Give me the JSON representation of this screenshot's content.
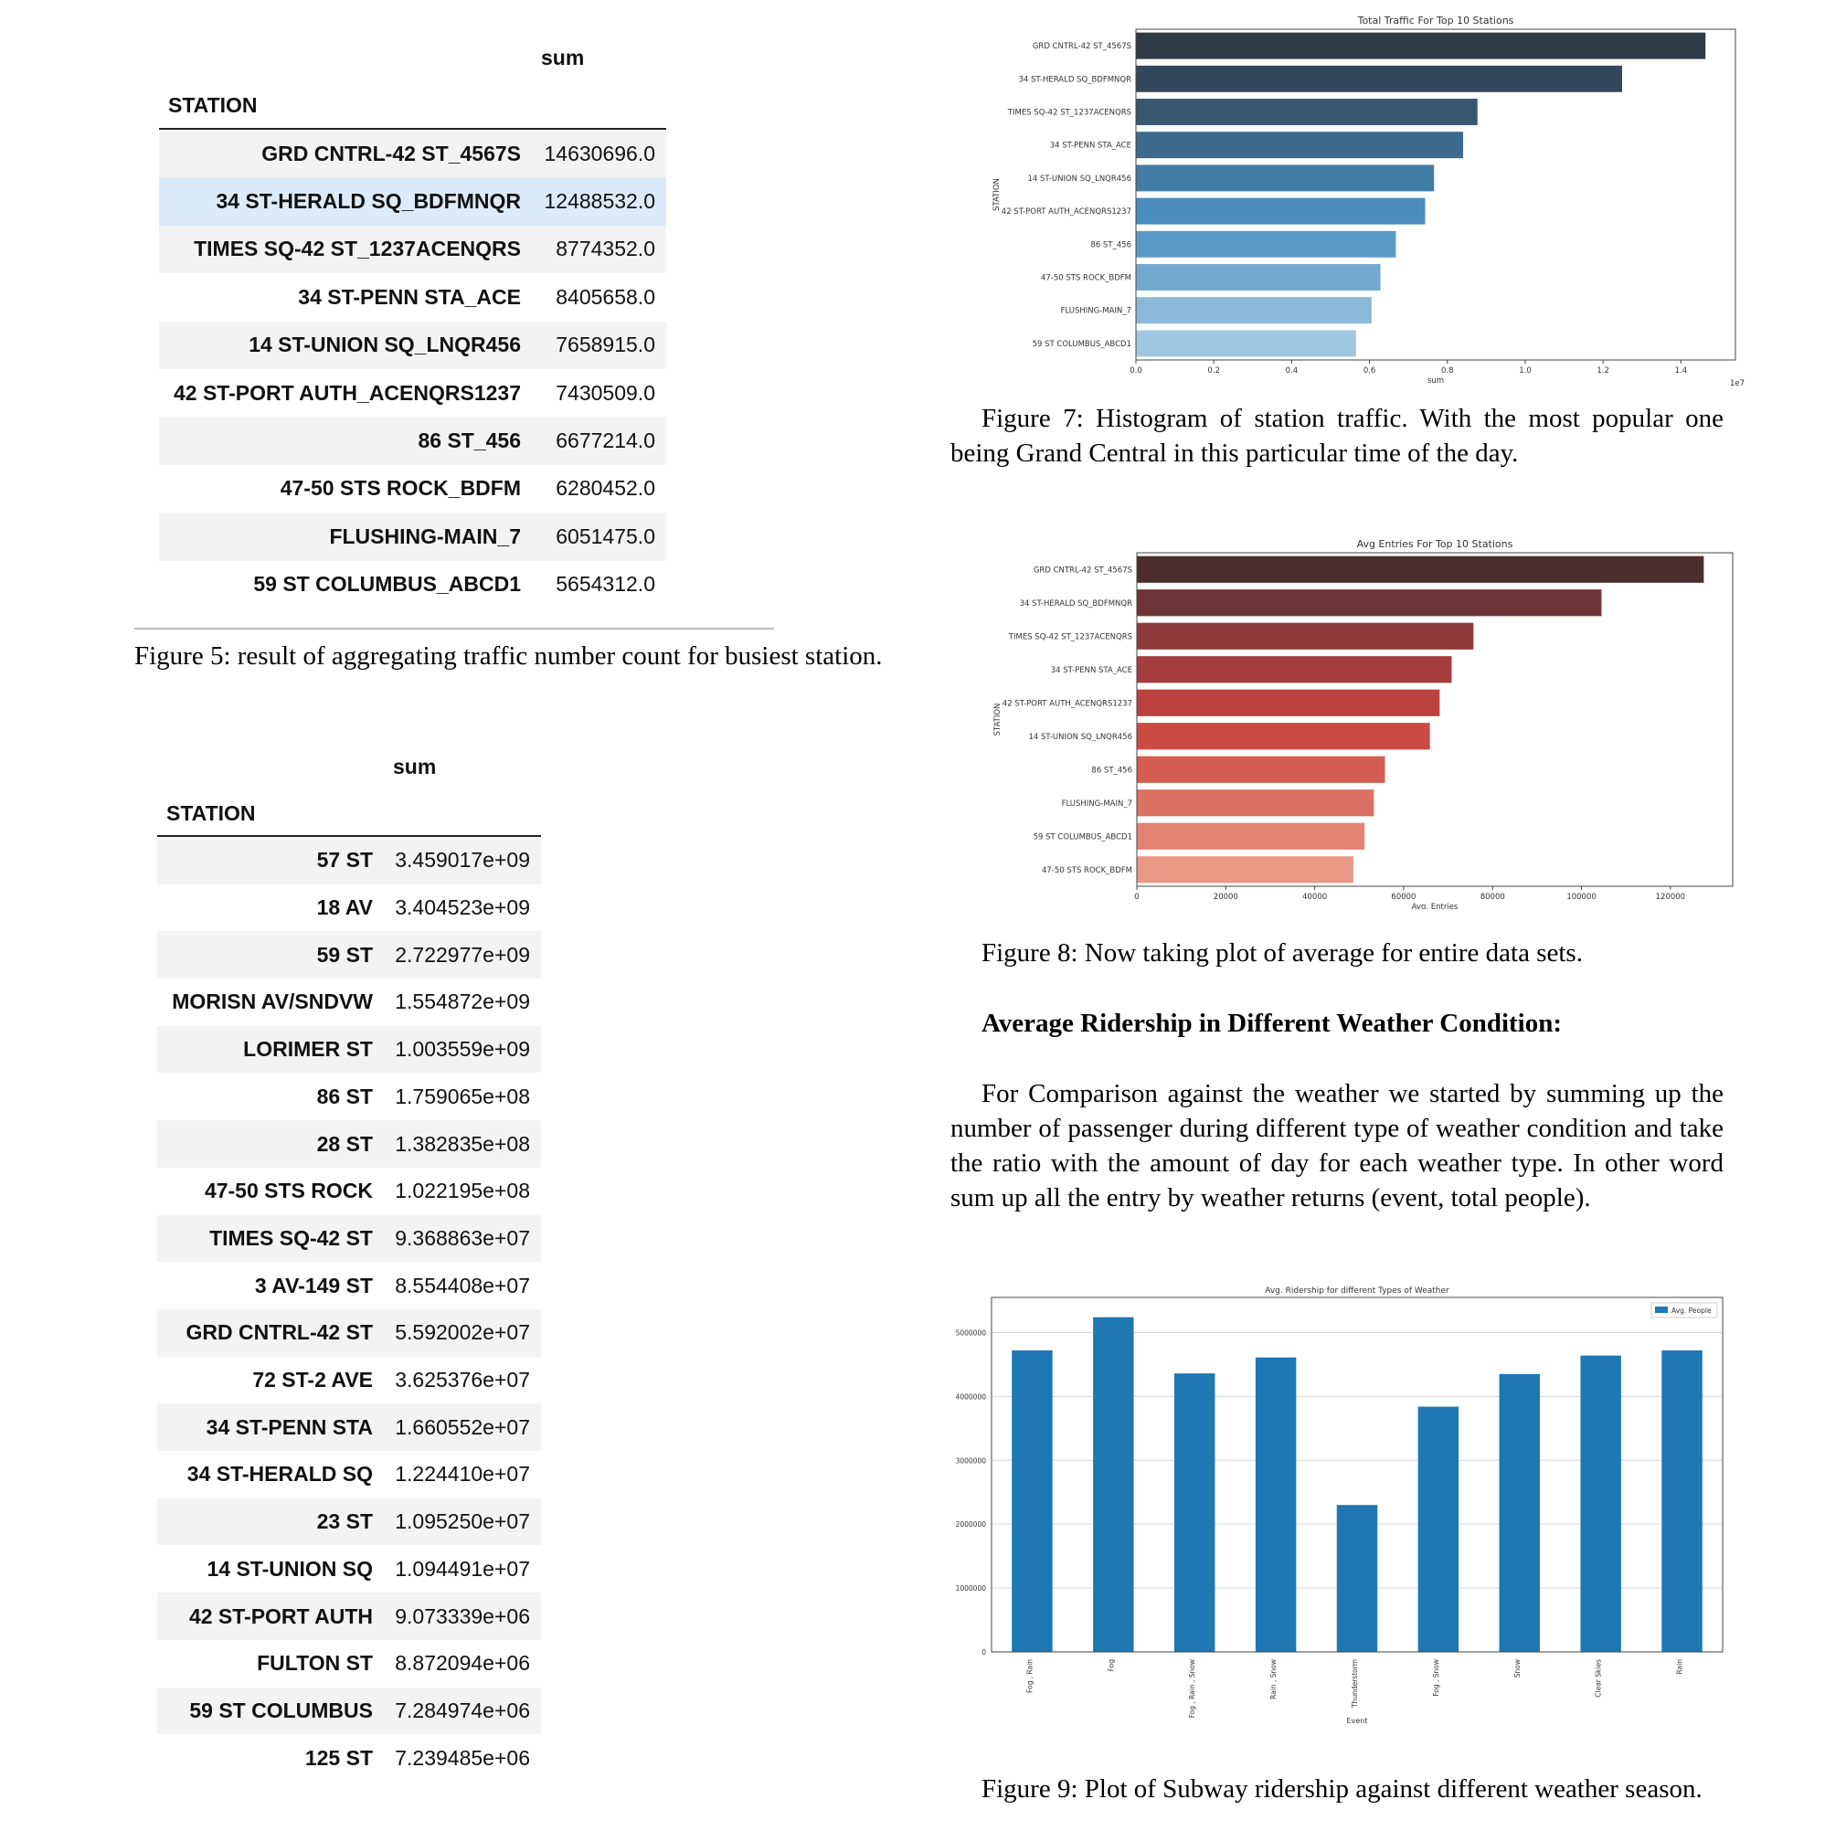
{
  "table1": {
    "col_header": "sum",
    "index_header": "STATION",
    "rows": [
      {
        "station": "GRD CNTRL-42 ST_4567S",
        "value": "14630696.0"
      },
      {
        "station": "34 ST-HERALD SQ_BDFMNQR",
        "value": "12488532.0"
      },
      {
        "station": "TIMES SQ-42 ST_1237ACENQRS",
        "value": "8774352.0"
      },
      {
        "station": "34 ST-PENN STA_ACE",
        "value": "8405658.0"
      },
      {
        "station": "14 ST-UNION SQ_LNQR456",
        "value": "7658915.0"
      },
      {
        "station": "42 ST-PORT AUTH_ACENQRS1237",
        "value": "7430509.0"
      },
      {
        "station": "86 ST_456",
        "value": "6677214.0"
      },
      {
        "station": "47-50 STS ROCK_BDFM",
        "value": "6280452.0"
      },
      {
        "station": "FLUSHING-MAIN_7",
        "value": "6051475.0"
      },
      {
        "station": "59 ST COLUMBUS_ABCD1",
        "value": "5654312.0"
      }
    ]
  },
  "fig5_caption": "Figure 5: result of aggregating traffic number count for busiest station.",
  "table2": {
    "col_header": "sum",
    "index_header": "STATION",
    "rows": [
      {
        "station": "57 ST",
        "value": "3.459017e+09"
      },
      {
        "station": "18 AV",
        "value": "3.404523e+09"
      },
      {
        "station": "59 ST",
        "value": "2.722977e+09"
      },
      {
        "station": "MORISN AV/SNDVW",
        "value": "1.554872e+09"
      },
      {
        "station": "LORIMER ST",
        "value": "1.003559e+09"
      },
      {
        "station": "86 ST",
        "value": "1.759065e+08"
      },
      {
        "station": "28 ST",
        "value": "1.382835e+08"
      },
      {
        "station": "47-50 STS ROCK",
        "value": "1.022195e+08"
      },
      {
        "station": "TIMES SQ-42 ST",
        "value": "9.368863e+07"
      },
      {
        "station": "3 AV-149 ST",
        "value": "8.554408e+07"
      },
      {
        "station": "GRD CNTRL-42 ST",
        "value": "5.592002e+07"
      },
      {
        "station": "72 ST-2 AVE",
        "value": "3.625376e+07"
      },
      {
        "station": "34 ST-PENN STA",
        "value": "1.660552e+07"
      },
      {
        "station": "34 ST-HERALD SQ",
        "value": "1.224410e+07"
      },
      {
        "station": "23 ST",
        "value": "1.095250e+07"
      },
      {
        "station": "14 ST-UNION SQ",
        "value": "1.094491e+07"
      },
      {
        "station": "42 ST-PORT AUTH",
        "value": "9.073339e+06"
      },
      {
        "station": "FULTON ST",
        "value": "8.872094e+06"
      },
      {
        "station": "59 ST COLUMBUS",
        "value": "7.284974e+06"
      },
      {
        "station": "125 ST",
        "value": "7.239485e+06"
      }
    ]
  },
  "fig7_caption": "Figure 7: Histogram of station traffic. With the most popular one being Grand Central in this particular time of the day.",
  "fig8_caption": "Figure 8: Now taking plot of average for entire data sets.",
  "section_heading": "Average Ridership in Different Weather Condition:",
  "paragraph": "For Comparison against the weather we started by summing up the number of passenger during different type of weather condition and take the ratio with the amount of day for each weather type. In other word sum up all the entry by weather returns (event, total people).",
  "fig9_caption": "Figure 9: Plot of Subway ridership against different weather season.",
  "chart_data": [
    {
      "type": "bar",
      "orientation": "horizontal",
      "title": "Total Traffic For Top 10 Stations",
      "xlabel": "sum",
      "ylabel": "STATION",
      "x_offset_label": "1e7",
      "categories": [
        "GRD CNTRL-42 ST_4567S",
        "34 ST-HERALD SQ_BDFMNQR",
        "TIMES SQ-42 ST_1237ACENQRS",
        "34 ST-PENN STA_ACE",
        "14 ST-UNION SQ_LNQR456",
        "42 ST-PORT AUTH_ACENQRS1237",
        "86 ST_456",
        "47-50 STS ROCK_BDFM",
        "FLUSHING-MAIN_7",
        "59 ST COLUMBUS_ABCD1"
      ],
      "values": [
        14630696,
        12488532,
        8774352,
        8405658,
        7658915,
        7430509,
        6677214,
        6280452,
        6051475,
        5654312
      ],
      "xlim": [
        0,
        15400000
      ],
      "xticks": [
        0,
        2000000,
        4000000,
        6000000,
        8000000,
        10000000,
        12000000,
        14000000
      ],
      "xtick_labels": [
        "0.0",
        "0.2",
        "0.4",
        "0.6",
        "0.8",
        "1.0",
        "1.2",
        "1.4"
      ],
      "colors": [
        "#2e3a45",
        "#33475a",
        "#385872",
        "#3d6a8d",
        "#437da6",
        "#4b8dbc",
        "#5c9ac6",
        "#73a9cf",
        "#8ab8d8",
        "#a1c7e0"
      ],
      "grid": false
    },
    {
      "type": "bar",
      "orientation": "horizontal",
      "title": "Avg Entries For Top 10 Stations",
      "xlabel": "Avg. Entries",
      "ylabel": "STATION",
      "categories": [
        "GRD CNTRL-42 ST_4567S",
        "34 ST-HERALD SQ_BDFMNQR",
        "TIMES SQ-42 ST_1237ACENQRS",
        "34 ST-PENN STA_ACE",
        "42 ST-PORT AUTH_ACENQRS1237",
        "14 ST-UNION SQ_LNQR456",
        "86 ST_456",
        "FLUSHING-MAIN_7",
        "59 ST COLUMBUS_ABCD1",
        "47-50 STS ROCK_BDFM"
      ],
      "values": [
        127500,
        104500,
        75700,
        70800,
        68100,
        65900,
        55800,
        53300,
        51200,
        48700
      ],
      "xlim": [
        0,
        134000
      ],
      "xticks": [
        0,
        20000,
        40000,
        60000,
        80000,
        100000,
        120000
      ],
      "xtick_labels": [
        "0",
        "20000",
        "40000",
        "60000",
        "80000",
        "100000",
        "120000"
      ],
      "colors": [
        "#4e2d2f",
        "#6e3539",
        "#8c3a3c",
        "#a63e3d",
        "#bc4240",
        "#cb4a43",
        "#d35d50",
        "#db7162",
        "#e28373",
        "#e89885"
      ],
      "grid": false
    },
    {
      "type": "bar",
      "orientation": "vertical",
      "title": "Avg. Ridership for different Types of Weather",
      "xlabel": "Event",
      "ylabel": "",
      "legend": {
        "entries": [
          "Avg. People"
        ],
        "position": "top-right"
      },
      "categories": [
        "Fog , Rain",
        "Fog",
        "Fog , Rain , Snow",
        "Rain , Snow",
        "Thunderstorm",
        "Fog , Snow",
        "Snow",
        "Clear Skies",
        "Rain"
      ],
      "series": [
        {
          "name": "Avg. People",
          "values": [
            4720000,
            5240000,
            4360000,
            4610000,
            2300000,
            3840000,
            4350000,
            4640000,
            4720000
          ]
        }
      ],
      "ylim": [
        0,
        5550000
      ],
      "yticks": [
        0,
        1000000,
        2000000,
        3000000,
        4000000,
        5000000
      ],
      "ytick_labels": [
        "0",
        "1000000",
        "2000000",
        "3000000",
        "4000000",
        "5000000"
      ],
      "bar_color": "#1f77b4",
      "grid": true
    }
  ]
}
